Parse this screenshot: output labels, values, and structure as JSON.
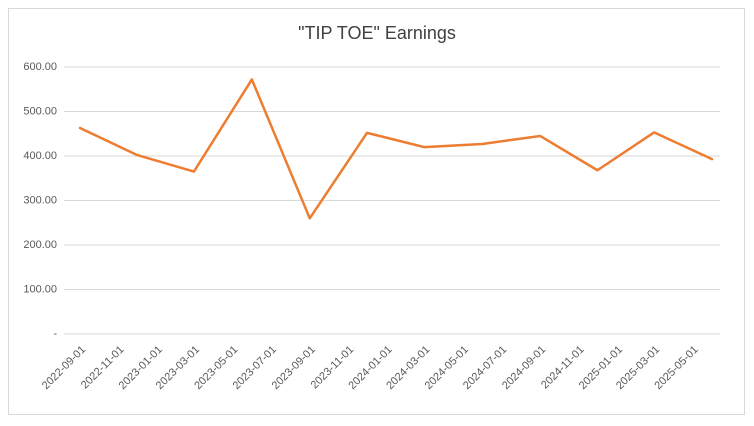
{
  "chart_data": {
    "type": "line",
    "title": "\"TIP TOE\" Earnings",
    "x": [
      "2022-09-01",
      "2022-12-01",
      "2023-03-01",
      "2023-06-01",
      "2023-09-01",
      "2023-12-01",
      "2024-03-01",
      "2024-06-01",
      "2024-09-01",
      "2024-12-01",
      "2025-03-01",
      "2025-06-01"
    ],
    "series": [
      {
        "name": "Earnings",
        "color": "#ed7d31",
        "values": [
          463,
          402,
          365,
          572,
          260,
          452,
          420,
          427,
          445,
          368,
          453,
          393
        ]
      }
    ],
    "xlim": [
      "2022-09-01",
      "2025-06-01"
    ],
    "xticks": [
      "2022-09-01",
      "2022-11-01",
      "2023-01-01",
      "2023-03-01",
      "2023-05-01",
      "2023-07-01",
      "2023-09-01",
      "2023-11-01",
      "2024-01-01",
      "2024-03-01",
      "2024-05-01",
      "2024-07-01",
      "2024-09-01",
      "2024-11-01",
      "2025-01-01",
      "2025-03-01",
      "2025-05-01"
    ],
    "ylim": [
      0,
      600
    ],
    "yticks": [
      {
        "value": 0,
        "label": "-"
      },
      {
        "value": 100,
        "label": "100.00"
      },
      {
        "value": 200,
        "label": "200.00"
      },
      {
        "value": 300,
        "label": "300.00"
      },
      {
        "value": 400,
        "label": "400.00"
      },
      {
        "value": 500,
        "label": "500.00"
      },
      {
        "value": 600,
        "label": "600.00"
      }
    ],
    "grid": true
  }
}
